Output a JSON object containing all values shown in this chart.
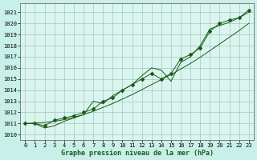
{
  "xlabel": "Graphe pression niveau de la mer (hPa)",
  "x": [
    0,
    1,
    2,
    3,
    4,
    5,
    6,
    7,
    8,
    9,
    10,
    11,
    12,
    13,
    14,
    15,
    16,
    17,
    18,
    19,
    20,
    21,
    22,
    23
  ],
  "y_main": [
    1011.0,
    1011.0,
    1010.8,
    1011.3,
    1011.5,
    1011.7,
    1012.0,
    1012.3,
    1013.0,
    1013.3,
    1014.0,
    1014.5,
    1015.0,
    1015.5,
    1015.0,
    1015.5,
    1016.8,
    1017.2,
    1017.8,
    1019.3,
    1020.0,
    1020.3,
    1020.5,
    1021.2
  ],
  "y_secondary": [
    1011.0,
    1011.0,
    1010.6,
    1010.8,
    1011.2,
    1011.5,
    1011.8,
    1013.0,
    1012.8,
    1013.5,
    1014.0,
    1014.5,
    1015.3,
    1016.0,
    1015.8,
    1014.8,
    1016.5,
    1017.0,
    1018.0,
    1019.5,
    1019.8,
    1020.1,
    1020.5,
    1021.0
  ],
  "y_trend": [
    1011.0,
    1011.05,
    1011.1,
    1011.2,
    1011.35,
    1011.55,
    1011.8,
    1012.1,
    1012.45,
    1012.8,
    1013.2,
    1013.6,
    1014.05,
    1014.5,
    1014.95,
    1015.4,
    1015.9,
    1016.4,
    1016.95,
    1017.55,
    1018.15,
    1018.75,
    1019.35,
    1020.0
  ],
  "ylim_min": 1009.5,
  "ylim_max": 1021.8,
  "yticks": [
    1010,
    1011,
    1012,
    1013,
    1014,
    1015,
    1016,
    1017,
    1018,
    1019,
    1020,
    1021
  ],
  "line_color": "#1a5c1a",
  "bg_color": "#c8f0e8",
  "axis_bg": "#daf5ef",
  "grid_color": "#99bbaa",
  "marker": "D",
  "marker_size": 2.0,
  "xlabel_fontsize": 6.0,
  "tick_fontsize": 5.0
}
